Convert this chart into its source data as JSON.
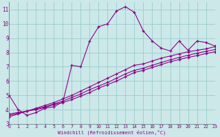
{
  "x": [
    0,
    1,
    2,
    3,
    4,
    5,
    6,
    7,
    8,
    9,
    10,
    11,
    12,
    13,
    14,
    15,
    16,
    17,
    18,
    19,
    20,
    21,
    22,
    23
  ],
  "line1": [
    5.0,
    4.0,
    3.6,
    3.8,
    4.1,
    4.2,
    4.55,
    7.1,
    7.0,
    8.8,
    9.8,
    10.0,
    10.9,
    11.2,
    10.8,
    9.5,
    8.8,
    8.3,
    8.1,
    8.8,
    8.15,
    8.8,
    8.7,
    8.45
  ],
  "line2": [
    3.5,
    3.7,
    3.9,
    4.1,
    4.3,
    4.5,
    4.75,
    5.0,
    5.3,
    5.6,
    5.9,
    6.2,
    6.5,
    6.8,
    7.1,
    7.2,
    7.4,
    7.6,
    7.75,
    7.9,
    8.05,
    8.15,
    8.25,
    8.4
  ],
  "line3": [
    3.6,
    3.75,
    3.9,
    4.05,
    4.2,
    4.4,
    4.6,
    4.85,
    5.1,
    5.4,
    5.65,
    5.9,
    6.2,
    6.5,
    6.75,
    6.9,
    7.1,
    7.3,
    7.48,
    7.65,
    7.8,
    7.95,
    8.08,
    8.2
  ],
  "line4": [
    3.7,
    3.8,
    3.9,
    4.0,
    4.15,
    4.35,
    4.5,
    4.7,
    4.95,
    5.2,
    5.5,
    5.75,
    6.0,
    6.3,
    6.6,
    6.75,
    6.95,
    7.15,
    7.35,
    7.5,
    7.65,
    7.78,
    7.92,
    8.05
  ],
  "color": "#880088",
  "bg_color": "#cce8e8",
  "grid_color": "#99cccc",
  "xlabel": "Windchill (Refroidissement éolien,°C)",
  "ylim": [
    3,
    11.5
  ],
  "xlim": [
    0,
    23
  ],
  "yticks": [
    3,
    4,
    5,
    6,
    7,
    8,
    9,
    10,
    11
  ],
  "xtick_labels": [
    "0",
    "1",
    "2",
    "3",
    "4",
    "5",
    "6",
    "7",
    "8",
    "9",
    "10",
    "11",
    "12",
    "13",
    "14",
    "15",
    "16",
    "17",
    "18",
    "19",
    "20",
    "21",
    "22",
    "23"
  ],
  "marker": "+"
}
